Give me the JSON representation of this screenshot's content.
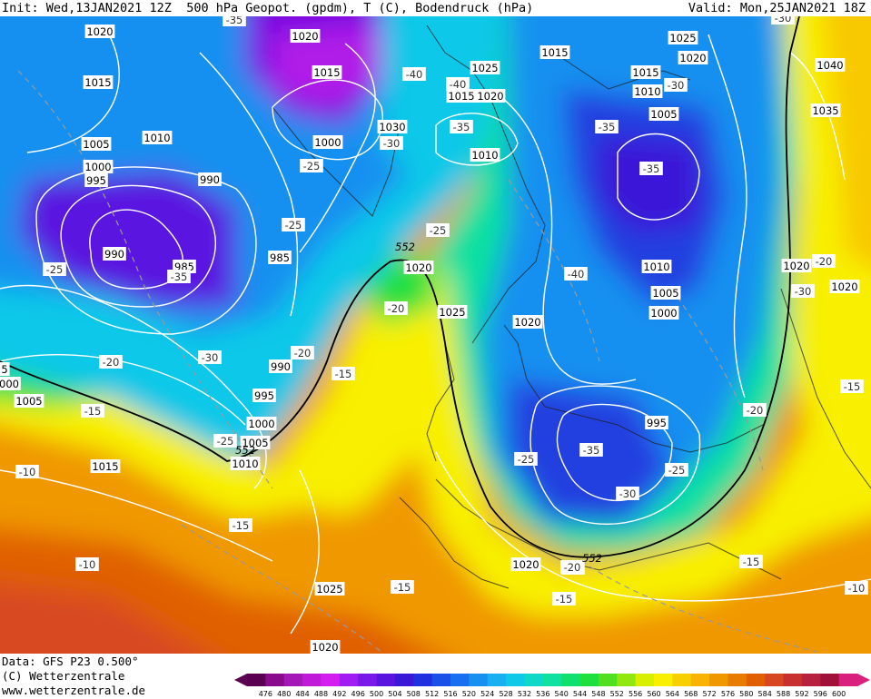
{
  "header": {
    "init": "Init: Wed,13JAN2021 12Z",
    "product": "500 hPa Geopot. (gpdm), T (C), Bodendruck (hPa)",
    "valid": "Valid: Mon,25JAN2021 18Z"
  },
  "footer": {
    "data_source": "Data: GFS P23 0.500°",
    "copyright": "(C) Wetterzentrale",
    "website": "www.wetterzentrale.de"
  },
  "colorbar": {
    "ticks": [
      476,
      480,
      484,
      488,
      492,
      496,
      500,
      504,
      508,
      512,
      516,
      520,
      524,
      528,
      532,
      536,
      540,
      544,
      548,
      552,
      556,
      560,
      564,
      568,
      572,
      576,
      580,
      584,
      588,
      592,
      596,
      600
    ],
    "colors": [
      "#5a0050",
      "#8a0a8c",
      "#a418b8",
      "#c01ad8",
      "#d41ef0",
      "#a01cf0",
      "#7a18e8",
      "#5a14e0",
      "#3a18d8",
      "#2030e0",
      "#1a50e8",
      "#1870f0",
      "#1890f0",
      "#18b0f0",
      "#10c8e8",
      "#10d8c8",
      "#10e0a0",
      "#10e070",
      "#20e040",
      "#50e020",
      "#90e810",
      "#d8f000",
      "#f8f000",
      "#f8d000",
      "#f8b400",
      "#f09800",
      "#e87c00",
      "#e06000",
      "#d84820",
      "#c83030",
      "#b82040",
      "#a01038",
      "#d8207c"
    ]
  },
  "map": {
    "colors": {
      "deep_violet": "#7a10e0",
      "violet": "#5a14e0",
      "blue": "#2040e0",
      "light_blue": "#1890f0",
      "cyan": "#10c8e8",
      "teal": "#10e0a0",
      "green": "#20e040",
      "yellow": "#f8f000",
      "orange_yellow": "#f8c800",
      "orange": "#f09800",
      "dark_orange": "#e06000",
      "red_orange": "#d84820"
    },
    "isobar_labels": [
      {
        "text": "1020",
        "name": "isobar-label-1020-a"
      },
      {
        "text": "1015",
        "name": "isobar-label-1015-a"
      },
      {
        "text": "1005",
        "name": "isobar-label-1005-a"
      },
      {
        "text": "1000",
        "name": "isobar-label-1000-a"
      },
      {
        "text": "995",
        "name": "isobar-label-995-a"
      },
      {
        "text": "990",
        "name": "isobar-label-990-a"
      },
      {
        "text": "1010",
        "name": "isobar-label-1010-a"
      },
      {
        "text": "990",
        "name": "isobar-label-990-b"
      },
      {
        "text": "985",
        "name": "isobar-label-985-a"
      },
      {
        "text": "1020",
        "name": "isobar-label-1020-b"
      },
      {
        "text": "1015",
        "name": "isobar-label-1015-b"
      },
      {
        "text": "1000",
        "name": "isobar-label-1000-b"
      },
      {
        "text": "1030",
        "name": "isobar-label-1030"
      },
      {
        "text": "985",
        "name": "isobar-label-985-b"
      },
      {
        "text": "1025",
        "name": "isobar-label-1025-a"
      },
      {
        "text": "1015",
        "name": "isobar-label-1015-c"
      },
      {
        "text": "1020",
        "name": "isobar-label-1020-c"
      },
      {
        "text": "1010",
        "name": "isobar-label-1010-b"
      },
      {
        "text": "1015",
        "name": "isobar-label-1015-d"
      },
      {
        "text": "1025",
        "name": "isobar-label-1025-b"
      },
      {
        "text": "1020",
        "name": "isobar-label-1020-d"
      },
      {
        "text": "1015",
        "name": "isobar-label-1015-e"
      },
      {
        "text": "1010",
        "name": "isobar-label-1010-c"
      },
      {
        "text": "1005",
        "name": "isobar-label-1005-b"
      },
      {
        "text": "1040",
        "name": "isobar-label-1040"
      },
      {
        "text": "1035",
        "name": "isobar-label-1035"
      },
      {
        "text": "1020",
        "name": "isobar-label-1020-e"
      },
      {
        "text": "1025",
        "name": "isobar-label-1025-c"
      },
      {
        "text": "1010",
        "name": "isobar-label-1010-d"
      },
      {
        "text": "1005",
        "name": "isobar-label-1005-c"
      },
      {
        "text": "1000",
        "name": "isobar-label-1000-c"
      },
      {
        "text": "1020",
        "name": "isobar-label-1020-f"
      },
      {
        "text": "1020",
        "name": "isobar-label-1020-g"
      },
      {
        "text": "1020",
        "name": "isobar-label-1020-h"
      },
      {
        "text": "990",
        "name": "isobar-label-990-c"
      },
      {
        "text": "995",
        "name": "isobar-label-995-b"
      },
      {
        "text": "1000",
        "name": "isobar-label-1000-d"
      },
      {
        "text": "1005",
        "name": "isobar-label-1005-d"
      },
      {
        "text": "1010",
        "name": "isobar-label-1010-e"
      },
      {
        "text": "1005",
        "name": "isobar-label-1005-e"
      },
      {
        "text": "1015",
        "name": "isobar-label-1015-f"
      },
      {
        "text": "995",
        "name": "isobar-label-995-c"
      },
      {
        "text": "1020",
        "name": "isobar-label-1020-i"
      },
      {
        "text": "1025",
        "name": "isobar-label-1025-d"
      },
      {
        "text": "1020",
        "name": "isobar-label-1020-j"
      },
      {
        "text": "5",
        "name": "isobar-label-edge-5"
      },
      {
        "text": "000",
        "name": "isobar-label-edge-000"
      }
    ],
    "temp_labels": [
      {
        "text": "-35",
        "name": "temp-label-minus35-a"
      },
      {
        "text": "-25",
        "name": "temp-label-minus25-a"
      },
      {
        "text": "-35",
        "name": "temp-label-minus35-b"
      },
      {
        "text": "-30",
        "name": "temp-label-minus30-a"
      },
      {
        "text": "-20",
        "name": "temp-label-minus20-a"
      },
      {
        "text": "-15",
        "name": "temp-label-minus15-a"
      },
      {
        "text": "-10",
        "name": "temp-label-minus10-a"
      },
      {
        "text": "-25",
        "name": "temp-label-minus25-b"
      },
      {
        "text": "-25",
        "name": "temp-label-minus25-c"
      },
      {
        "text": "-30",
        "name": "temp-label-minus30-b"
      },
      {
        "text": "-40",
        "name": "temp-label-minus40-a"
      },
      {
        "text": "-25",
        "name": "temp-label-minus25-d"
      },
      {
        "text": "-20",
        "name": "temp-label-minus20-b"
      },
      {
        "text": "-15",
        "name": "temp-label-minus15-b"
      },
      {
        "text": "-20",
        "name": "temp-label-minus20-c"
      },
      {
        "text": "-15",
        "name": "temp-label-minus15-c"
      },
      {
        "text": "-10",
        "name": "temp-label-minus10-b"
      },
      {
        "text": "-15",
        "name": "temp-label-minus15-d"
      },
      {
        "text": "-40",
        "name": "temp-label-minus40-b"
      },
      {
        "text": "-35",
        "name": "temp-label-minus35-c"
      },
      {
        "text": "-25",
        "name": "temp-label-minus25-e"
      },
      {
        "text": "-30",
        "name": "temp-label-minus30-c"
      },
      {
        "text": "-35",
        "name": "temp-label-minus35-d"
      },
      {
        "text": "-40",
        "name": "temp-label-minus40-c"
      },
      {
        "text": "-30",
        "name": "temp-label-minus30-d"
      },
      {
        "text": "-35",
        "name": "temp-label-minus35-e"
      },
      {
        "text": "-35",
        "name": "temp-label-minus35-f"
      },
      {
        "text": "-25",
        "name": "temp-label-minus25-f"
      },
      {
        "text": "-30",
        "name": "temp-label-minus30-e"
      },
      {
        "text": "-20",
        "name": "temp-label-minus20-d"
      },
      {
        "text": "-15",
        "name": "temp-label-minus15-e"
      },
      {
        "text": "-15",
        "name": "temp-label-minus15-f"
      },
      {
        "text": "-20",
        "name": "temp-label-minus20-e"
      },
      {
        "text": "-25",
        "name": "temp-label-minus25-g"
      },
      {
        "text": "-20",
        "name": "temp-label-minus20-f"
      },
      {
        "text": "-15",
        "name": "temp-label-minus15-g"
      },
      {
        "text": "-10",
        "name": "temp-label-minus10-c"
      },
      {
        "text": "-30",
        "name": "temp-label-minus30-f"
      },
      {
        "text": "-20",
        "name": "temp-label-minus20-g"
      }
    ],
    "height_labels": [
      {
        "text": "552",
        "name": "height-label-552-a"
      },
      {
        "text": "552",
        "name": "height-label-552-b"
      },
      {
        "text": "552",
        "name": "height-label-552-c"
      }
    ]
  }
}
